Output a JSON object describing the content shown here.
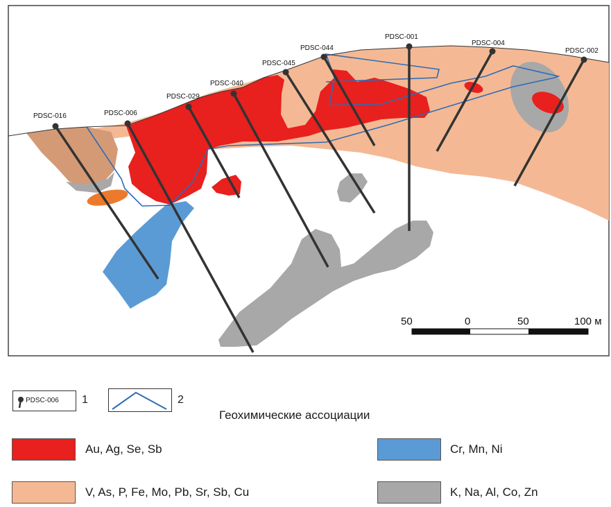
{
  "drillholes": [
    "PDSC-016",
    "PDSC-006",
    "PDSC-029",
    "PDSC-040",
    "PDSC-045",
    "PDSC-044",
    "PDSC-001",
    "PDSC-004",
    "PDSC-002"
  ],
  "scale": {
    "ticks": [
      "50",
      "0",
      "50",
      "100 м"
    ]
  },
  "legend": {
    "symbol_label": "PDSC-006",
    "item1_number": "1",
    "item2_number": "2",
    "title": "Геохимические ассоциации",
    "associations": [
      {
        "label": "Au, Ag, Se, Sb",
        "color": "#e8201e"
      },
      {
        "label": "Cr, Mn, Ni",
        "color": "#5b9bd5"
      },
      {
        "label": "V, As, P, Fe, Mo, Pb, Sr, Sb, Cu",
        "color": "#f4b994"
      },
      {
        "label": "K, Na, Al, Co, Zn",
        "color": "#a8a8a8"
      }
    ]
  },
  "colors": {
    "red": "#e8201e",
    "peach": "#f4b994",
    "brown": "#d49a76",
    "blue": "#5b9bd5",
    "gray": "#a8a8a8",
    "orange": "#ec7a2c",
    "outline": "#2e6bb5"
  }
}
